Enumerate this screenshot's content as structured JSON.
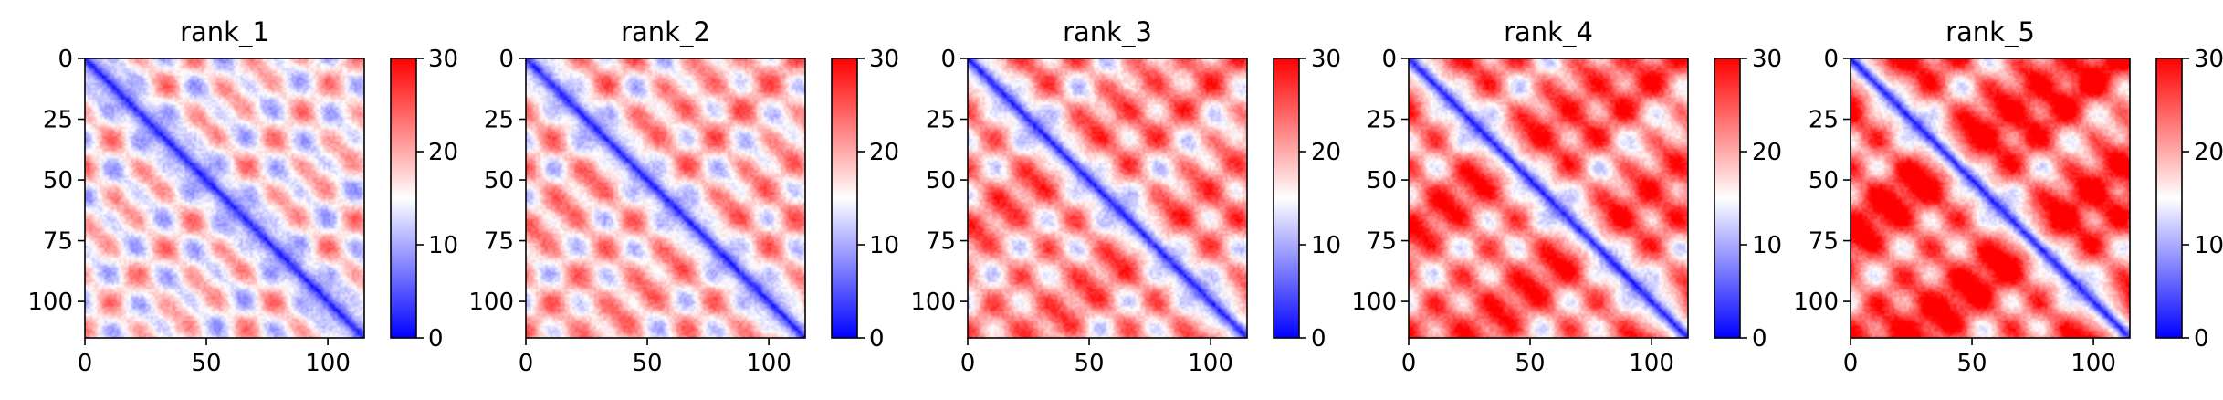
{
  "chart_data": [
    {
      "type": "heatmap",
      "title": "rank_1",
      "size": 115,
      "xticks": [
        0,
        50,
        100
      ],
      "yticks": [
        0,
        25,
        50,
        75,
        100
      ],
      "xlim": [
        0,
        115
      ],
      "ylim": [
        115,
        0
      ],
      "colorbar": {
        "ticks": [
          0,
          10,
          20,
          30
        ],
        "range": [
          0,
          30
        ],
        "colormap": "bwr"
      },
      "grid": false
    },
    {
      "type": "heatmap",
      "title": "rank_2",
      "size": 115,
      "xticks": [
        0,
        50,
        100
      ],
      "yticks": [
        0,
        25,
        50,
        75,
        100
      ],
      "xlim": [
        0,
        115
      ],
      "ylim": [
        115,
        0
      ],
      "colorbar": {
        "ticks": [
          0,
          10,
          20,
          30
        ],
        "range": [
          0,
          30
        ],
        "colormap": "bwr"
      },
      "grid": false
    },
    {
      "type": "heatmap",
      "title": "rank_3",
      "size": 115,
      "xticks": [
        0,
        50,
        100
      ],
      "yticks": [
        0,
        25,
        50,
        75,
        100
      ],
      "xlim": [
        0,
        115
      ],
      "ylim": [
        115,
        0
      ],
      "colorbar": {
        "ticks": [
          0,
          10,
          20,
          30
        ],
        "range": [
          0,
          30
        ],
        "colormap": "bwr"
      },
      "grid": false
    },
    {
      "type": "heatmap",
      "title": "rank_4",
      "size": 115,
      "xticks": [
        0,
        50,
        100
      ],
      "yticks": [
        0,
        25,
        50,
        75,
        100
      ],
      "xlim": [
        0,
        115
      ],
      "ylim": [
        115,
        0
      ],
      "colorbar": {
        "ticks": [
          0,
          10,
          20,
          30
        ],
        "range": [
          0,
          30
        ],
        "colormap": "bwr"
      },
      "grid": false
    },
    {
      "type": "heatmap",
      "title": "rank_5",
      "size": 115,
      "xticks": [
        0,
        50,
        100
      ],
      "yticks": [
        0,
        25,
        50,
        75,
        100
      ],
      "xlim": [
        0,
        115
      ],
      "ylim": [
        115,
        0
      ],
      "colorbar": {
        "ticks": [
          0,
          10,
          20,
          30
        ],
        "range": [
          0,
          30
        ],
        "colormap": "bwr"
      },
      "grid": false
    }
  ],
  "colors": {
    "low": "#0000ff",
    "mid": "#ffffff",
    "high": "#ff0000"
  }
}
